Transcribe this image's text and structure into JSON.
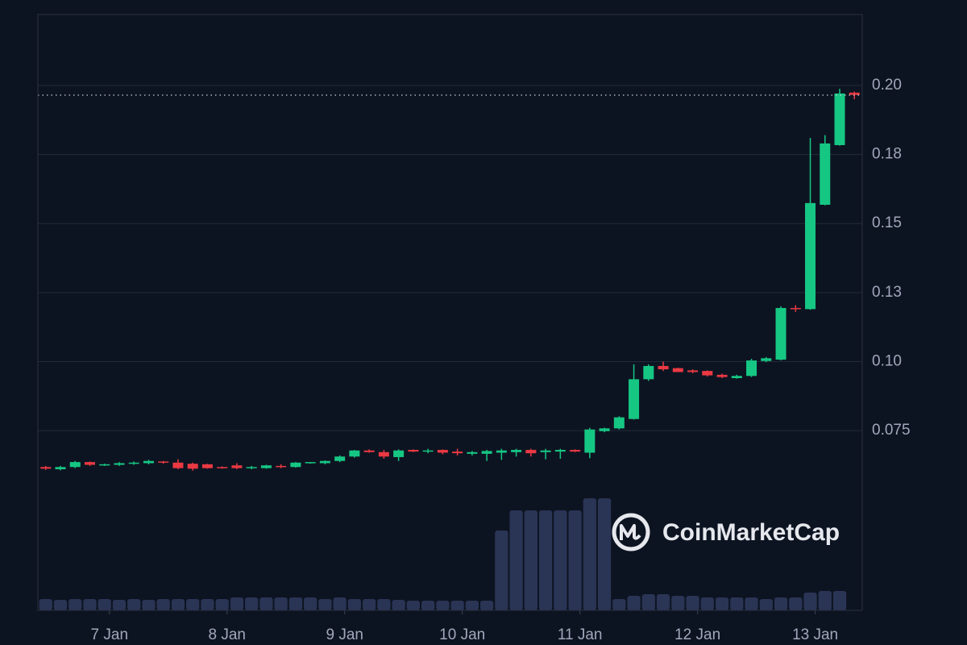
{
  "chart_data": {
    "type": "candlestick",
    "watermark": "CoinMarketCap",
    "x": [
      0,
      3,
      6,
      9,
      12,
      15,
      18,
      21,
      24,
      27,
      30,
      33,
      36,
      39,
      42,
      45,
      48,
      51,
      54,
      57,
      60,
      63,
      66,
      69,
      72,
      75,
      78,
      81,
      84,
      87,
      90,
      93,
      96,
      99,
      102,
      105,
      108,
      111,
      114,
      117,
      120,
      123,
      126,
      129,
      132,
      135,
      138,
      141,
      144,
      147,
      150,
      153,
      156,
      159,
      162,
      165
    ],
    "open": [
      0.0618,
      0.061,
      0.0618,
      0.0636,
      0.0626,
      0.0626,
      0.063,
      0.0632,
      0.0638,
      0.0634,
      0.063,
      0.0628,
      0.0618,
      0.0624,
      0.0614,
      0.0614,
      0.0622,
      0.0618,
      0.0634,
      0.0632,
      0.064,
      0.0656,
      0.0678,
      0.0672,
      0.0654,
      0.068,
      0.0674,
      0.068,
      0.0674,
      0.0666,
      0.0666,
      0.067,
      0.0672,
      0.068,
      0.0672,
      0.0674,
      0.068,
      0.067,
      0.0748,
      0.0758,
      0.0792,
      0.0936,
      0.0984,
      0.0976,
      0.0968,
      0.0966,
      0.0952,
      0.094,
      0.0948,
      0.1002,
      0.1007,
      0.1194,
      0.119,
      0.1568,
      0.1784,
      0.1974
    ],
    "high": [
      0.0622,
      0.0622,
      0.064,
      0.0638,
      0.063,
      0.0636,
      0.0638,
      0.0644,
      0.064,
      0.0646,
      0.0634,
      0.063,
      0.062,
      0.0632,
      0.0622,
      0.0626,
      0.0628,
      0.0636,
      0.0636,
      0.0642,
      0.066,
      0.068,
      0.0682,
      0.068,
      0.0682,
      0.0682,
      0.0684,
      0.0682,
      0.0684,
      0.0676,
      0.068,
      0.0684,
      0.0684,
      0.0684,
      0.0684,
      0.0684,
      0.0682,
      0.076,
      0.076,
      0.0802,
      0.099,
      0.099,
      0.1,
      0.0978,
      0.0972,
      0.0968,
      0.0956,
      0.0952,
      0.101,
      0.1016,
      0.12,
      0.1204,
      0.181,
      0.182,
      0.1988,
      0.1978
    ],
    "low": [
      0.0608,
      0.0606,
      0.0614,
      0.0622,
      0.0622,
      0.0622,
      0.0626,
      0.0628,
      0.063,
      0.061,
      0.0605,
      0.0612,
      0.0612,
      0.061,
      0.061,
      0.0612,
      0.0614,
      0.0616,
      0.063,
      0.0628,
      0.0636,
      0.0652,
      0.067,
      0.0648,
      0.064,
      0.0672,
      0.0668,
      0.0664,
      0.066,
      0.066,
      0.064,
      0.0644,
      0.0656,
      0.0656,
      0.0646,
      0.0648,
      0.0672,
      0.065,
      0.0744,
      0.0754,
      0.079,
      0.093,
      0.0966,
      0.0962,
      0.0958,
      0.0946,
      0.094,
      0.0938,
      0.0944,
      0.0998,
      0.1004,
      0.118,
      0.1188,
      0.1566,
      0.1782,
      0.195
    ],
    "close": [
      0.0612,
      0.0618,
      0.0636,
      0.0626,
      0.0628,
      0.0632,
      0.0634,
      0.064,
      0.0634,
      0.0614,
      0.0612,
      0.0614,
      0.0614,
      0.0614,
      0.0618,
      0.0624,
      0.0618,
      0.0634,
      0.0636,
      0.064,
      0.0656,
      0.0678,
      0.0672,
      0.0656,
      0.0678,
      0.0674,
      0.0678,
      0.067,
      0.0668,
      0.0672,
      0.0676,
      0.0678,
      0.068,
      0.0668,
      0.0678,
      0.068,
      0.0674,
      0.0754,
      0.0758,
      0.0798,
      0.0936,
      0.0984,
      0.0972,
      0.0962,
      0.0962,
      0.095,
      0.0944,
      0.0948,
      0.1004,
      0.1012,
      0.1194,
      0.119,
      0.1574,
      0.179,
      0.1971,
      0.1966
    ],
    "volume": [
      14,
      13,
      14,
      14,
      14,
      13,
      14,
      13,
      14,
      14,
      14,
      14,
      14,
      16,
      16,
      16,
      16,
      16,
      16,
      14,
      16,
      14,
      14,
      14,
      13,
      12,
      12,
      12,
      12,
      12,
      12,
      99,
      124,
      124,
      124,
      124,
      124,
      139,
      139,
      14,
      18,
      20,
      20,
      18,
      18,
      16,
      16,
      16,
      16,
      14,
      16,
      16,
      22,
      24,
      24,
      0
    ],
    "up_color": "#16c784",
    "down_color": "#ea3943",
    "volume_color": "#2a3455",
    "last_price": 0.1965,
    "xlim": [
      -1.6,
      166.6
    ],
    "ylim": [
      0.0099,
      0.2257
    ],
    "volume_lim": [
      0,
      150
    ],
    "xticks": [
      {
        "value": 13,
        "label": "7 Jan"
      },
      {
        "value": 37,
        "label": "8 Jan"
      },
      {
        "value": 61,
        "label": "9 Jan"
      },
      {
        "value": 85,
        "label": "10 Jan"
      },
      {
        "value": 109,
        "label": "11 Jan"
      },
      {
        "value": 133,
        "label": "12 Jan"
      },
      {
        "value": 157,
        "label": "13 Jan"
      }
    ],
    "yticks": [
      0.075,
      {
        "value": 0.1,
        "label": "0.10"
      },
      {
        "value": 0.125,
        "label": "0.13"
      },
      0.15,
      {
        "value": 0.175,
        "label": "0.18"
      },
      {
        "value": 0.2,
        "label": "0.20"
      }
    ],
    "grid": true
  }
}
